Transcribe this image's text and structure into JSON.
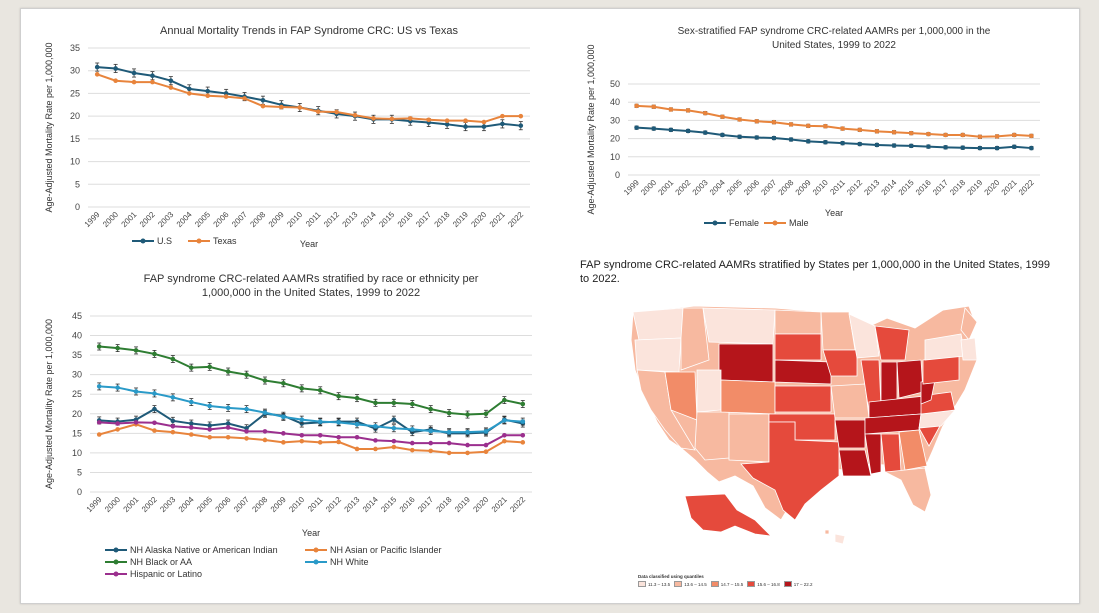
{
  "colors": {
    "us": "#1f5a78",
    "texas": "#e8843c",
    "female": "#1f5a78",
    "male": "#e8843c",
    "nh_aian": "#1f5a78",
    "nh_api": "#e8843c",
    "nh_black": "#2e7d32",
    "nh_white": "#2a9ac8",
    "hispanic": "#9b2f8e",
    "map_bins": [
      "#fbe4dc",
      "#f7b9a0",
      "#f28c68",
      "#e54a3c",
      "#b5151b"
    ]
  },
  "chart_data": [
    {
      "id": "chart1",
      "type": "line",
      "title": "Annual Mortality Trends in FAP Syndrome CRC: US vs Texas",
      "xlabel": "Year",
      "ylabel": "Age-Adjusted Mortality Rate per 1,000,000",
      "ylim": [
        0,
        35
      ],
      "yticks": [
        0,
        5,
        10,
        15,
        20,
        25,
        30,
        35
      ],
      "grid": true,
      "legend": "bottom",
      "x": [
        "1999",
        "2000",
        "2001",
        "2002",
        "2003",
        "2004",
        "2005",
        "2006",
        "2007",
        "2008",
        "2009",
        "2010",
        "2011",
        "2012",
        "2013",
        "2014",
        "2015",
        "2016",
        "2017",
        "2018",
        "2019",
        "2020",
        "2021",
        "2022"
      ],
      "series": [
        {
          "name": "U.S",
          "color_key": "us",
          "error_bars": true,
          "values": [
            30.8,
            30.5,
            29.5,
            28.9,
            27.8,
            26.0,
            25.5,
            25.0,
            24.3,
            23.5,
            22.5,
            21.9,
            21.2,
            20.5,
            20.0,
            19.3,
            19.3,
            18.9,
            18.6,
            18.2,
            17.7,
            17.7,
            18.3,
            17.9
          ]
        },
        {
          "name": "Texas",
          "color_key": "texas",
          "error_bars": false,
          "values": [
            29.2,
            27.8,
            27.5,
            27.5,
            26.3,
            25.0,
            24.5,
            24.3,
            23.9,
            22.2,
            22.0,
            21.9,
            21.0,
            20.9,
            20.2,
            19.5,
            19.4,
            19.5,
            19.2,
            19.0,
            19.0,
            18.7,
            20.0,
            20.0
          ]
        }
      ]
    },
    {
      "id": "chart2",
      "type": "line",
      "title": "Sex-stratified FAP syndrome CRC-related AAMRs per 1,000,000 in the United States, 1999 to 2022",
      "xlabel": "Year",
      "ylabel": "Age-Adjusted Mortality Rate per 1,000,000",
      "ylim": [
        0,
        50
      ],
      "yticks": [
        0,
        10,
        20,
        30,
        40,
        50
      ],
      "grid": true,
      "legend": "bottom",
      "x": [
        "1999",
        "2000",
        "2001",
        "2002",
        "2003",
        "2004",
        "2005",
        "2006",
        "2007",
        "2008",
        "2009",
        "2010",
        "2011",
        "2012",
        "2013",
        "2014",
        "2015",
        "2016",
        "2017",
        "2018",
        "2019",
        "2020",
        "2021",
        "2022"
      ],
      "series": [
        {
          "name": "Female",
          "color_key": "female",
          "error_bars": true,
          "values": [
            26.0,
            25.5,
            24.8,
            24.2,
            23.3,
            22.0,
            21.0,
            20.6,
            20.3,
            19.5,
            18.5,
            18.0,
            17.5,
            17.0,
            16.5,
            16.2,
            16.0,
            15.6,
            15.2,
            15.0,
            14.8,
            14.8,
            15.5,
            14.8
          ]
        },
        {
          "name": "Male",
          "color_key": "male",
          "error_bars": true,
          "values": [
            38.0,
            37.5,
            36.0,
            35.5,
            34.0,
            32.0,
            30.5,
            29.5,
            29.0,
            27.8,
            27.0,
            26.8,
            25.5,
            24.8,
            24.0,
            23.5,
            23.0,
            22.5,
            22.0,
            22.0,
            21.0,
            21.2,
            22.0,
            21.5
          ]
        }
      ]
    },
    {
      "id": "chart3",
      "type": "line",
      "title": "FAP syndrome CRC-related AAMRs stratified by race or ethnicity per 1,000,000 in the United States, 1999 to 2022",
      "xlabel": "Year",
      "ylabel": "Age-Adjusted Mortality Rate per 1,000,000",
      "ylim": [
        0,
        45
      ],
      "yticks": [
        0,
        5,
        10,
        15,
        20,
        25,
        30,
        35,
        40,
        45
      ],
      "grid": true,
      "legend": "bottom",
      "x": [
        "1999",
        "2000",
        "2001",
        "2002",
        "2003",
        "2004",
        "2005",
        "2006",
        "2007",
        "2008",
        "2009",
        "2010",
        "2011",
        "2012",
        "2013",
        "2014",
        "2015",
        "2016",
        "2017",
        "2018",
        "2019",
        "2020",
        "2021",
        "2022"
      ],
      "series": [
        {
          "name": "NH Alaska Native or American Indian",
          "color_key": "nh_aian",
          "error_bars": true,
          "values": [
            18.3,
            18.0,
            18.5,
            21.2,
            18.2,
            17.5,
            17.0,
            17.5,
            16.3,
            20.0,
            19.5,
            17.5,
            17.8,
            18.0,
            18.0,
            16.2,
            18.5,
            15.3,
            16.0,
            15.0,
            15.0,
            15.2,
            18.5,
            17.5
          ]
        },
        {
          "name": "NH Asian or Pacific Islander",
          "color_key": "nh_api",
          "error_bars": false,
          "values": [
            14.7,
            16.0,
            17.3,
            15.7,
            15.3,
            14.7,
            14.0,
            14.0,
            13.7,
            13.3,
            12.7,
            13.0,
            12.7,
            12.8,
            11.0,
            11.0,
            11.5,
            10.7,
            10.5,
            10.0,
            10.0,
            10.3,
            13.0,
            12.7
          ]
        },
        {
          "name": "NH Black or AA",
          "color_key": "nh_black",
          "error_bars": true,
          "values": [
            37.2,
            36.8,
            36.2,
            35.3,
            34.0,
            31.8,
            32.0,
            30.8,
            30.0,
            28.5,
            27.8,
            26.5,
            26.0,
            24.5,
            24.0,
            22.8,
            22.8,
            22.5,
            21.2,
            20.2,
            19.8,
            20.0,
            23.5,
            22.5
          ]
        },
        {
          "name": "NH White",
          "color_key": "nh_white",
          "error_bars": true,
          "values": [
            27.0,
            26.7,
            25.7,
            25.2,
            24.2,
            23.0,
            22.0,
            21.5,
            21.2,
            20.3,
            19.2,
            18.5,
            18.0,
            17.8,
            17.3,
            16.8,
            16.3,
            16.0,
            15.6,
            15.3,
            15.3,
            15.5,
            18.3,
            18.0
          ]
        },
        {
          "name": "Hispanic or Latino",
          "color_key": "hispanic",
          "error_bars": false,
          "values": [
            17.8,
            17.5,
            17.8,
            17.7,
            16.8,
            16.5,
            16.0,
            16.5,
            15.5,
            15.5,
            15.0,
            14.5,
            14.5,
            14.0,
            14.0,
            13.2,
            13.0,
            12.5,
            12.5,
            12.5,
            12.0,
            12.0,
            14.5,
            14.5
          ]
        }
      ]
    }
  ],
  "map": {
    "title": "FAP syndrome CRC-related AAMRs stratified by States per 1,000,000 in the United States, 1999 to 2022.",
    "legend_title": "Data classified using quantiles",
    "legend_items": [
      {
        "label": "11.3 – 13.5",
        "bin": 0
      },
      {
        "label": "13.6 – 14.5",
        "bin": 1
      },
      {
        "label": "14.7 – 15.5",
        "bin": 2
      },
      {
        "label": "15.6 – 16.8",
        "bin": 3
      },
      {
        "label": "17 – 22.2",
        "bin": 4
      }
    ]
  }
}
